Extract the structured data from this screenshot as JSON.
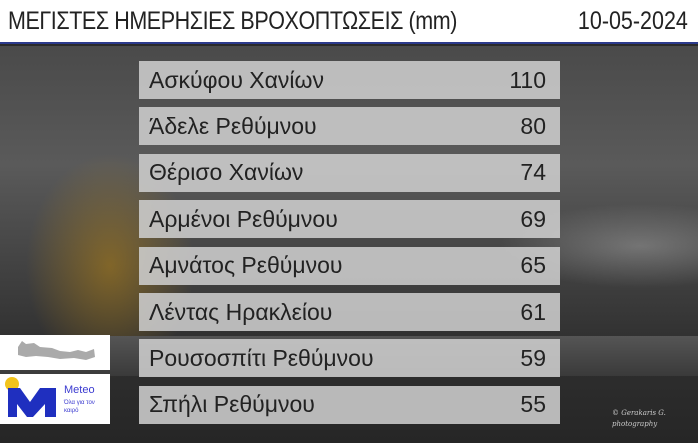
{
  "header": {
    "title": "ΜΕΓΙΣΤΕΣ ΗΜΕΡΗΣΙΕΣ ΒΡΟΧΟΠΤΩΣΕΙΣ (mm)",
    "date": "10-05-2024"
  },
  "rows": [
    {
      "station": "Ασκύφου Χανίων",
      "value": "110"
    },
    {
      "station": "Άδελε Ρεθύμνου",
      "value": "80"
    },
    {
      "station": "Θέρισο Χανίων",
      "value": "74"
    },
    {
      "station": "Αρμένοι Ρεθύμνου",
      "value": "69"
    },
    {
      "station": "Αμνάτος Ρεθύμνου",
      "value": "65"
    },
    {
      "station": "Λέντας Ηρακλείου",
      "value": "61"
    },
    {
      "station": "Ρουσοσπίτι Ρεθύμνου",
      "value": "59"
    },
    {
      "station": "Σπήλι Ρεθύμνου",
      "value": "55"
    }
  ],
  "logo": {
    "name": "Meteo",
    "tagline": "Όλα για τον καιρό",
    "colors": {
      "blue": "#1f2fbf",
      "yellow": "#f2c31b"
    }
  },
  "watermark": "© Gerakaris G. photography"
}
